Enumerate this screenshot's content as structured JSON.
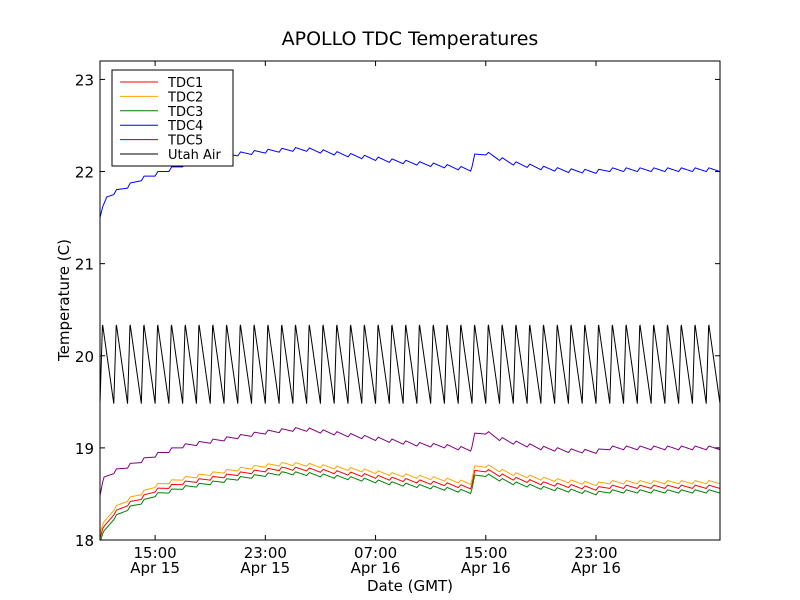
{
  "chart_data": {
    "type": "line",
    "title": "APOLLO TDC Temperatures",
    "xlabel": "Date (GMT)",
    "ylabel": "Temperature (C)",
    "xlim": [
      0,
      45.0
    ],
    "ylim": [
      18,
      23.2
    ],
    "yticks": [
      18,
      19,
      20,
      21,
      22,
      23
    ],
    "x_unit": "hours since Apr 15 11:00 GMT",
    "xticks": [
      {
        "value": 4,
        "time": "15:00",
        "date": "Apr 15"
      },
      {
        "value": 12,
        "time": "23:00",
        "date": "Apr 15"
      },
      {
        "value": 20,
        "time": "07:00",
        "date": "Apr 16"
      },
      {
        "value": 28,
        "time": "15:00",
        "date": "Apr 16"
      },
      {
        "value": 36,
        "time": "23:00",
        "date": "Apr 16"
      }
    ],
    "legend": "upper-left",
    "series": [
      {
        "name": "TDC1",
        "color": "#ff0000",
        "type": "tdc",
        "offset": 0.02
      },
      {
        "name": "TDC2",
        "color": "#ffa500",
        "type": "tdc",
        "offset": 0.07
      },
      {
        "name": "TDC3",
        "color": "#008000",
        "type": "tdc",
        "offset": -0.03
      },
      {
        "name": "TDC4",
        "color": "#0000ff",
        "type": "tdc4",
        "offset": 0
      },
      {
        "name": "TDC5",
        "color": "#800080",
        "type": "tdc5",
        "offset": 0
      },
      {
        "name": "Utah Air",
        "color": "#000000",
        "type": "air",
        "offset": 0
      }
    ],
    "baseline_points": [
      [
        0,
        18.0
      ],
      [
        0.3,
        18.1
      ],
      [
        1,
        18.25
      ],
      [
        2,
        18.35
      ],
      [
        3,
        18.42
      ],
      [
        4,
        18.5
      ],
      [
        6,
        18.58
      ],
      [
        8,
        18.63
      ],
      [
        10,
        18.68
      ],
      [
        12,
        18.72
      ],
      [
        13.5,
        18.74
      ],
      [
        15,
        18.73
      ],
      [
        17,
        18.7
      ],
      [
        19,
        18.67
      ],
      [
        21,
        18.63
      ],
      [
        23,
        18.6
      ],
      [
        25,
        18.57
      ],
      [
        26.9,
        18.53
      ],
      [
        27.2,
        18.7
      ],
      [
        28,
        18.72
      ],
      [
        29,
        18.67
      ],
      [
        30,
        18.63
      ],
      [
        32,
        18.58
      ],
      [
        34,
        18.55
      ],
      [
        36,
        18.52
      ],
      [
        37,
        18.54
      ]
    ],
    "tdc4_points": [
      [
        0,
        21.5
      ],
      [
        0.5,
        21.7
      ],
      [
        1,
        21.75
      ],
      [
        2,
        21.82
      ],
      [
        3,
        21.9
      ],
      [
        4,
        21.95
      ],
      [
        6,
        22.05
      ],
      [
        8,
        22.12
      ],
      [
        10,
        22.17
      ],
      [
        12,
        22.2
      ],
      [
        14,
        22.22
      ],
      [
        15,
        22.22
      ],
      [
        17,
        22.18
      ],
      [
        19,
        22.14
      ],
      [
        21,
        22.1
      ],
      [
        23,
        22.07
      ],
      [
        25,
        22.04
      ],
      [
        26.9,
        22.0
      ],
      [
        27.2,
        22.15
      ],
      [
        28,
        22.18
      ],
      [
        29,
        22.12
      ],
      [
        30,
        22.07
      ],
      [
        32,
        22.02
      ],
      [
        34,
        21.99
      ],
      [
        36,
        21.98
      ],
      [
        37,
        22.0
      ]
    ],
    "tdc5_points": [
      [
        0,
        18.48
      ],
      [
        0.3,
        18.65
      ],
      [
        1,
        18.72
      ],
      [
        2,
        18.78
      ],
      [
        3,
        18.84
      ],
      [
        4,
        18.9
      ],
      [
        6,
        19.0
      ],
      [
        8,
        19.05
      ],
      [
        10,
        19.1
      ],
      [
        12,
        19.15
      ],
      [
        14,
        19.18
      ],
      [
        15,
        19.18
      ],
      [
        17,
        19.14
      ],
      [
        19,
        19.1
      ],
      [
        21,
        19.06
      ],
      [
        23,
        19.02
      ],
      [
        25,
        19.0
      ],
      [
        26.9,
        18.96
      ],
      [
        27.2,
        19.12
      ],
      [
        28,
        19.15
      ],
      [
        29,
        19.08
      ],
      [
        30,
        19.04
      ],
      [
        32,
        18.98
      ],
      [
        34,
        18.95
      ],
      [
        36,
        18.94
      ],
      [
        37,
        18.98
      ]
    ],
    "air_cycle": {
      "period": 1.0,
      "high": 20.35,
      "low": 19.48,
      "rise_fraction": 0.18
    }
  }
}
